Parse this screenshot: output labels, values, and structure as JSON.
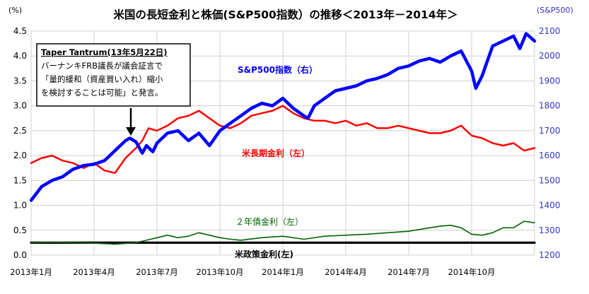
{
  "chart_data": {
    "type": "line",
    "title": "米国の長短金利と株価(S&P500指数）の推移＜2013年－2014年＞",
    "y_left_unit": "(%)",
    "y_right_unit": "(S&P500)",
    "ylim_left": [
      0,
      4.5
    ],
    "ylim_right": [
      1200,
      2100
    ],
    "y_left_ticks": [
      "0.0",
      "0.5",
      "1.0",
      "1.5",
      "2.0",
      "2.5",
      "3.0",
      "3.5",
      "4.0",
      "4.5"
    ],
    "y_right_ticks": [
      "1200",
      "1300",
      "1400",
      "1500",
      "1600",
      "1700",
      "1800",
      "1900",
      "2000",
      "2100"
    ],
    "x_ticks": [
      "2013年1月",
      "2013年4月",
      "2013年7月",
      "2013年10月",
      "2014年1月",
      "2014年4月",
      "2014年7月",
      "2014年10月"
    ],
    "grid": true,
    "annotation": {
      "title": "Taper Tantrum(13年5月22日)",
      "lines": [
        "バーナンキFRB議長が議会証言で",
        "「量的緩和（資産買い入れ）縮小",
        "を検討することは可能」と発言。"
      ]
    },
    "series": [
      {
        "name": "S&P500指数（右）",
        "axis": "right",
        "color": "#0000ff",
        "x": [
          0,
          0.5,
          1,
          1.5,
          2,
          2.5,
          3,
          3.5,
          4,
          4.5,
          4.7,
          5,
          5.3,
          5.5,
          5.8,
          6,
          6.5,
          7,
          7.5,
          8,
          8.5,
          9,
          9.5,
          10,
          10.5,
          11,
          11.5,
          12,
          12.5,
          13,
          13.2,
          13.5,
          14,
          14.5,
          15,
          15.5,
          16,
          16.5,
          17,
          17.5,
          18,
          18.5,
          19,
          19.5,
          20,
          20.5,
          21,
          21.2,
          21.5,
          22,
          22.5,
          23,
          23.3,
          23.6,
          24
        ],
        "values": [
          1420,
          1475,
          1500,
          1515,
          1545,
          1560,
          1565,
          1580,
          1620,
          1660,
          1670,
          1655,
          1610,
          1640,
          1615,
          1650,
          1690,
          1700,
          1660,
          1690,
          1640,
          1700,
          1730,
          1760,
          1790,
          1810,
          1800,
          1830,
          1790,
          1760,
          1750,
          1800,
          1830,
          1860,
          1870,
          1880,
          1900,
          1910,
          1925,
          1950,
          1960,
          1980,
          1990,
          1975,
          2000,
          2020,
          1940,
          1870,
          1920,
          2040,
          2060,
          2080,
          2030,
          2090,
          2060
        ]
      },
      {
        "name": "米長期金利（左）",
        "axis": "left",
        "color": "#ff0000",
        "x": [
          0,
          0.5,
          1,
          1.5,
          2,
          2.5,
          3,
          3.5,
          4,
          4.5,
          5,
          5.3,
          5.6,
          6,
          6.5,
          7,
          7.5,
          8,
          8.5,
          9,
          9.5,
          10,
          10.5,
          11,
          11.5,
          12,
          12.5,
          13,
          13.5,
          14,
          14.5,
          15,
          15.5,
          16,
          16.5,
          17,
          17.5,
          18,
          18.5,
          19,
          19.5,
          20,
          20.5,
          21,
          21.5,
          22,
          22.5,
          23,
          23.5,
          24
        ],
        "values": [
          1.85,
          1.95,
          2.0,
          1.9,
          1.85,
          1.75,
          1.85,
          1.7,
          1.65,
          1.95,
          2.15,
          2.3,
          2.55,
          2.5,
          2.6,
          2.75,
          2.8,
          2.9,
          2.75,
          2.6,
          2.55,
          2.65,
          2.8,
          2.85,
          2.9,
          3.0,
          2.85,
          2.75,
          2.7,
          2.7,
          2.65,
          2.7,
          2.6,
          2.65,
          2.55,
          2.55,
          2.6,
          2.55,
          2.5,
          2.45,
          2.45,
          2.5,
          2.6,
          2.4,
          2.35,
          2.25,
          2.2,
          2.25,
          2.1,
          2.15
        ]
      },
      {
        "name": "２年債金利（左）",
        "axis": "left",
        "color": "#006400",
        "x": [
          0,
          1,
          2,
          3,
          4,
          5,
          5.5,
          6,
          6.5,
          7,
          7.5,
          8,
          8.5,
          9,
          9.5,
          10,
          11,
          12,
          13,
          14,
          15,
          16,
          17,
          18,
          19,
          19.5,
          20,
          20.5,
          21,
          21.5,
          22,
          22.5,
          23,
          23.5,
          24
        ],
        "values": [
          0.25,
          0.26,
          0.25,
          0.24,
          0.22,
          0.25,
          0.3,
          0.35,
          0.4,
          0.35,
          0.38,
          0.45,
          0.4,
          0.35,
          0.32,
          0.3,
          0.35,
          0.38,
          0.32,
          0.38,
          0.4,
          0.42,
          0.45,
          0.48,
          0.55,
          0.58,
          0.6,
          0.55,
          0.42,
          0.4,
          0.45,
          0.55,
          0.55,
          0.68,
          0.65
        ]
      },
      {
        "name": "米政策金利(左)",
        "axis": "left",
        "color": "#000000",
        "x": [
          0,
          24
        ],
        "values": [
          0.25,
          0.25
        ]
      }
    ]
  }
}
